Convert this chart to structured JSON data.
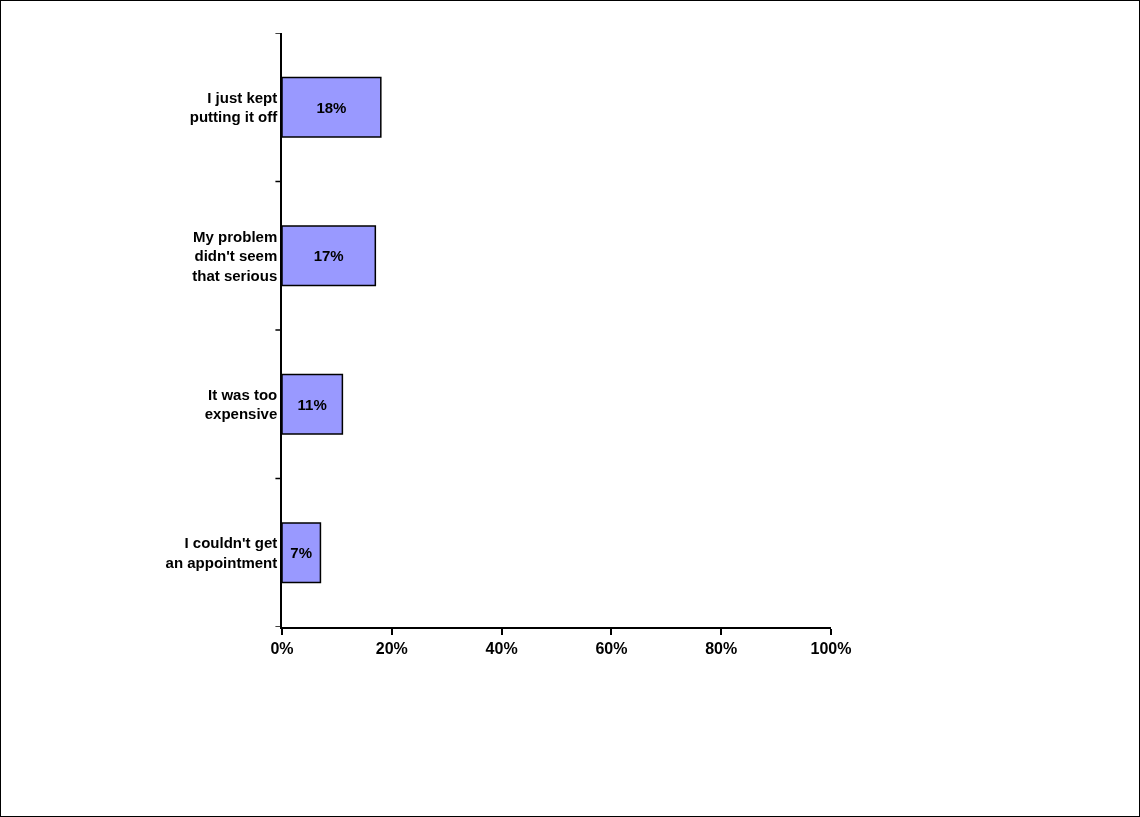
{
  "chart_data": {
    "type": "bar",
    "orientation": "horizontal",
    "categories": [
      "I just kept putting it off",
      "My problem didn't seem that serious",
      "It was too expensive",
      "I couldn't get an appointment"
    ],
    "values": [
      18,
      17,
      11,
      7
    ],
    "value_labels": [
      "18%",
      "17%",
      "11%",
      "7%"
    ],
    "color": "#9999ff",
    "xlim": [
      0,
      100
    ],
    "xticks": [
      {
        "value": 0,
        "label": "0%"
      },
      {
        "value": 20,
        "label": "20%"
      },
      {
        "value": 40,
        "label": "40%"
      },
      {
        "value": 60,
        "label": "60%"
      },
      {
        "value": 80,
        "label": "80%"
      },
      {
        "value": 100,
        "label": "100%"
      }
    ],
    "grid": false,
    "legend": false
  }
}
